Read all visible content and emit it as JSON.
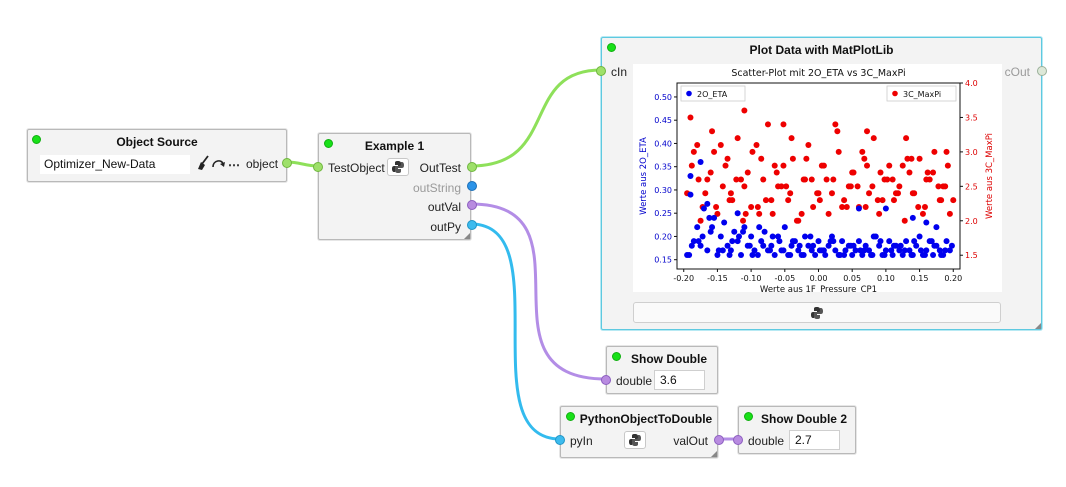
{
  "colors": {
    "edge_green": "#8ee05a",
    "edge_purple": "#b38de6",
    "edge_cyan": "#33bbee",
    "status_led": "#18e018",
    "selected_border": "#5ec9e0"
  },
  "nodes": {
    "object_source": {
      "title": "Object Source",
      "value": "Optimizer_New-Data",
      "port_out": "object",
      "broom_icon": "broom-icon",
      "redo_icon": "redo-icon",
      "more_icon": "more-icon"
    },
    "example1": {
      "title": "Example 1",
      "port_in": "TestObject",
      "ports_out": [
        "OutTest",
        "outString",
        "outVal",
        "outPy"
      ]
    },
    "plot_data": {
      "title": "Plot Data with MatPlotLib",
      "port_in": "cIn",
      "port_out": "cOut"
    },
    "show_double": {
      "title": "Show Double",
      "port_in": "double",
      "value": "3.6"
    },
    "py_to_double": {
      "title": "PythonObjectToDouble",
      "port_in": "pyIn",
      "port_out": "valOut"
    },
    "show_double2": {
      "title": "Show Double 2",
      "port_in": "double",
      "value": "2.7"
    }
  },
  "chart_data": {
    "type": "scatter",
    "title": "Scatter-Plot mit 2O_ETA vs 3C_MaxPi",
    "xlabel": "Werte aus 1F_Pressure_CP1",
    "ylabel_left": "Werte aus 2O_ETA",
    "ylabel_right": "Werte aus 3C_MaxPi",
    "xlim": [
      -0.21,
      0.21
    ],
    "ylim_left": [
      0.13,
      0.53
    ],
    "ylim_right": [
      1.3,
      4.0
    ],
    "x_ticks": [
      "-0.20",
      "-0.15",
      "-0.10",
      "-0.05",
      "0.00",
      "0.05",
      "0.10",
      "0.15",
      "0.20"
    ],
    "y_left_ticks": [
      "0.15",
      "0.20",
      "0.25",
      "0.30",
      "0.35",
      "0.40",
      "0.45",
      "0.50"
    ],
    "y_right_ticks": [
      "1.5",
      "2.0",
      "2.5",
      "3.0",
      "3.5",
      "4.0"
    ],
    "legend_left": "2O_ETA",
    "legend_right": "3C_MaxPi",
    "series": [
      {
        "name": "2O_ETA",
        "color": "#0000ee",
        "x": [
          -0.195,
          -0.19,
          -0.185,
          -0.18,
          -0.175,
          -0.17,
          -0.165,
          -0.16,
          -0.155,
          -0.15,
          -0.145,
          -0.14,
          -0.135,
          -0.13,
          -0.125,
          -0.12,
          -0.115,
          -0.11,
          -0.105,
          -0.1,
          -0.095,
          -0.09,
          -0.085,
          -0.08,
          -0.075,
          -0.07,
          -0.065,
          -0.06,
          -0.055,
          -0.05,
          -0.045,
          -0.04,
          -0.035,
          -0.03,
          -0.025,
          -0.02,
          -0.015,
          -0.01,
          -0.005,
          0.0,
          0.005,
          0.01,
          0.015,
          0.02,
          0.025,
          0.03,
          0.035,
          0.04,
          0.045,
          0.05,
          0.055,
          0.06,
          0.065,
          0.07,
          0.075,
          0.08,
          0.085,
          0.09,
          0.095,
          0.1,
          0.105,
          0.11,
          0.115,
          0.12,
          0.125,
          0.13,
          0.135,
          0.14,
          0.145,
          0.15,
          0.155,
          0.16,
          0.165,
          0.17,
          0.175,
          0.18,
          0.185,
          0.19,
          0.195,
          -0.188,
          -0.172,
          -0.158,
          -0.142,
          -0.128,
          -0.112,
          -0.098,
          -0.082,
          -0.068,
          -0.052,
          -0.038,
          -0.022,
          -0.008,
          0.008,
          0.022,
          0.038,
          0.052,
          0.068,
          0.082,
          0.098,
          0.112,
          0.128,
          0.142,
          0.158,
          0.172,
          0.188,
          -0.192,
          -0.178,
          -0.162,
          -0.148,
          -0.132,
          -0.118,
          -0.102,
          -0.088,
          -0.072,
          -0.058,
          -0.042,
          -0.028,
          -0.012,
          0.002,
          0.018,
          0.032,
          0.048,
          0.062,
          0.078,
          0.092,
          0.108,
          0.122,
          0.138,
          0.152,
          0.168,
          0.182,
          0.198,
          -0.165,
          -0.12,
          0.06,
          0.14,
          -0.19,
          -0.175,
          0.1,
          0.16,
          0.175
        ],
        "y": [
          0.16,
          0.33,
          0.19,
          0.22,
          0.18,
          0.26,
          0.17,
          0.21,
          0.24,
          0.16,
          0.2,
          0.23,
          0.18,
          0.17,
          0.21,
          0.19,
          0.16,
          0.22,
          0.18,
          0.2,
          0.17,
          0.16,
          0.19,
          0.21,
          0.17,
          0.18,
          0.16,
          0.2,
          0.17,
          0.22,
          0.16,
          0.18,
          0.19,
          0.17,
          0.16,
          0.2,
          0.18,
          0.17,
          0.16,
          0.19,
          0.17,
          0.16,
          0.18,
          0.2,
          0.17,
          0.16,
          0.19,
          0.17,
          0.18,
          0.16,
          0.17,
          0.19,
          0.16,
          0.18,
          0.17,
          0.16,
          0.2,
          0.18,
          0.16,
          0.17,
          0.19,
          0.16,
          0.18,
          0.17,
          0.16,
          0.19,
          0.17,
          0.16,
          0.18,
          0.2,
          0.16,
          0.17,
          0.19,
          0.16,
          0.18,
          0.17,
          0.16,
          0.19,
          0.17,
          0.18,
          0.2,
          0.22,
          0.17,
          0.19,
          0.21,
          0.16,
          0.18,
          0.2,
          0.17,
          0.19,
          0.16,
          0.18,
          0.17,
          0.19,
          0.16,
          0.18,
          0.17,
          0.2,
          0.16,
          0.18,
          0.17,
          0.19,
          0.16,
          0.18,
          0.17,
          0.16,
          0.19,
          0.24,
          0.17,
          0.16,
          0.2,
          0.18,
          0.22,
          0.17,
          0.19,
          0.16,
          0.18,
          0.2,
          0.17,
          0.19,
          0.16,
          0.18,
          0.17,
          0.16,
          0.19,
          0.17,
          0.18,
          0.16,
          0.17,
          0.19,
          0.16,
          0.18,
          0.27,
          0.25,
          0.26,
          0.24,
          0.29,
          0.36,
          0.26,
          0.23,
          0.22
        ]
      },
      {
        "name": "3C_MaxPi",
        "color": "#ee0000",
        "x": [
          -0.195,
          -0.188,
          -0.18,
          -0.172,
          -0.165,
          -0.158,
          -0.15,
          -0.142,
          -0.135,
          -0.128,
          -0.12,
          -0.112,
          -0.105,
          -0.098,
          -0.09,
          -0.082,
          -0.075,
          -0.068,
          -0.06,
          -0.052,
          -0.045,
          -0.038,
          -0.03,
          -0.022,
          -0.015,
          -0.008,
          0.0,
          0.008,
          0.015,
          0.022,
          0.03,
          0.038,
          0.045,
          0.052,
          0.06,
          0.068,
          0.075,
          0.082,
          0.09,
          0.098,
          0.105,
          0.112,
          0.12,
          0.128,
          0.135,
          0.142,
          0.15,
          0.158,
          0.165,
          0.172,
          0.18,
          0.188,
          0.195,
          -0.19,
          -0.175,
          -0.16,
          -0.145,
          -0.13,
          -0.115,
          -0.1,
          -0.085,
          -0.07,
          -0.055,
          -0.04,
          -0.025,
          -0.01,
          0.005,
          0.02,
          0.035,
          0.05,
          0.065,
          0.08,
          0.095,
          0.11,
          0.125,
          0.14,
          0.155,
          0.17,
          0.185,
          0.2,
          -0.185,
          -0.168,
          -0.152,
          -0.138,
          -0.122,
          -0.108,
          -0.092,
          -0.078,
          -0.062,
          -0.048,
          -0.032,
          -0.018,
          -0.002,
          0.012,
          0.028,
          0.042,
          0.058,
          0.072,
          0.088,
          0.102,
          0.118,
          0.132,
          0.148,
          0.162,
          0.178,
          0.192,
          -0.178,
          -0.155,
          -0.132,
          -0.11,
          -0.088,
          -0.065,
          -0.042,
          -0.02,
          0.002,
          0.025,
          0.048,
          0.07,
          0.092,
          0.115,
          0.138,
          0.16,
          0.182,
          -0.16,
          -0.11,
          -0.052,
          0.072,
          0.13,
          0.19
        ],
        "y": [
          2.4,
          2.8,
          3.1,
          2.2,
          2.6,
          3.3,
          2.1,
          2.5,
          2.9,
          2.3,
          3.2,
          2.0,
          2.7,
          3.0,
          2.2,
          2.6,
          3.4,
          2.1,
          2.5,
          2.8,
          2.3,
          2.9,
          2.0,
          2.6,
          3.1,
          2.2,
          2.4,
          2.8,
          2.1,
          2.6,
          3.0,
          2.3,
          2.5,
          2.7,
          2.2,
          2.9,
          2.4,
          3.2,
          2.1,
          2.6,
          2.8,
          2.3,
          2.5,
          2.0,
          2.7,
          2.4,
          2.9,
          2.2,
          2.6,
          3.0,
          2.3,
          2.5,
          2.1,
          3.5,
          2.0,
          2.7,
          3.1,
          2.4,
          2.6,
          2.2,
          2.9,
          2.3,
          2.5,
          3.2,
          2.1,
          2.6,
          2.8,
          2.4,
          2.2,
          2.7,
          3.0,
          2.5,
          2.3,
          2.6,
          2.8,
          2.4,
          2.1,
          2.7,
          2.5,
          2.3,
          3.0,
          2.4,
          2.2,
          2.8,
          2.6,
          2.1,
          3.1,
          2.3,
          2.7,
          2.5,
          2.0,
          2.9,
          2.4,
          2.6,
          3.3,
          2.2,
          2.5,
          2.8,
          2.3,
          2.6,
          2.4,
          2.9,
          2.2,
          2.7,
          2.5,
          2.8,
          2.6,
          3.0,
          2.3,
          2.5,
          2.1,
          2.8,
          2.4,
          2.6,
          2.3,
          3.4,
          2.5,
          2.2,
          2.7,
          2.4,
          2.9,
          2.6,
          2.3,
          3.8,
          3.6,
          3.4,
          3.3,
          3.2,
          3.0
        ]
      }
    ]
  }
}
